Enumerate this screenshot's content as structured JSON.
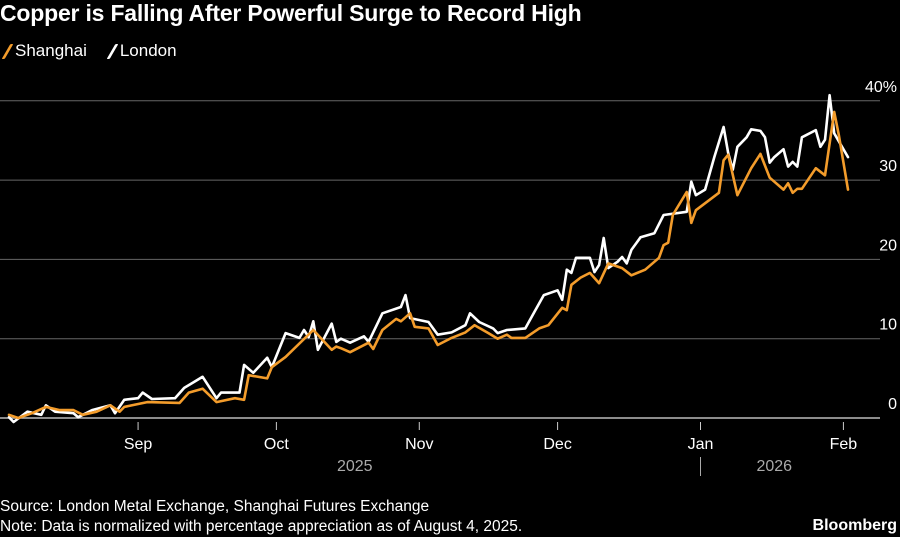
{
  "chart_data": {
    "type": "line",
    "title": "Copper is Falling After Powerful Surge to Record High",
    "xlabel": "",
    "ylabel": "",
    "x_unit": "days since August 4, 2025",
    "ylim": [
      -2,
      42
    ],
    "xlim": [
      -2,
      187
    ],
    "grid": true,
    "legend_position": "top-left",
    "y_ticks": [
      {
        "value": 0,
        "label": "0"
      },
      {
        "value": 10,
        "label": "10"
      },
      {
        "value": 20,
        "label": "20"
      },
      {
        "value": 30,
        "label": "30"
      },
      {
        "value": 40,
        "label": "40%"
      }
    ],
    "x_ticks": [
      {
        "value": 28,
        "label": "Sep"
      },
      {
        "value": 58,
        "label": "Oct"
      },
      {
        "value": 89,
        "label": "Nov"
      },
      {
        "value": 119,
        "label": "Dec"
      },
      {
        "value": 150,
        "label": "Jan"
      },
      {
        "value": 181,
        "label": "Feb"
      }
    ],
    "year_labels": [
      {
        "value": 75,
        "label": "2025"
      },
      {
        "value": 166,
        "label": "2026"
      }
    ],
    "year_divider": 150,
    "series": [
      {
        "name": "Shanghai",
        "color": "#f39c2b",
        "x": [
          0,
          2,
          5,
          8,
          11,
          14,
          16,
          19,
          22,
          24,
          25,
          30,
          37,
          39,
          42,
          45,
          49,
          51,
          52,
          56,
          57,
          60,
          66,
          70,
          71,
          72,
          74,
          78,
          79,
          81,
          84,
          85,
          87,
          88,
          91,
          93,
          96,
          99,
          101,
          104,
          106,
          108,
          109,
          112,
          115,
          117,
          120,
          121,
          122,
          124,
          126,
          128,
          130,
          133,
          135,
          138,
          141,
          142,
          143,
          144,
          147,
          148,
          149,
          154,
          155,
          156,
          158,
          161,
          163,
          165,
          168,
          169,
          170,
          171,
          172,
          175,
          177,
          179,
          180,
          182
        ],
        "values": [
          0.4,
          0,
          0.6,
          1.4,
          1.0,
          1.0,
          0.4,
          0.8,
          1.6,
          0.8,
          1.4,
          2.0,
          1.9,
          3.2,
          3.7,
          2.0,
          2.5,
          2.3,
          5.4,
          5.0,
          6.4,
          7.7,
          11.1,
          8.6,
          9.0,
          8.8,
          8.3,
          9.5,
          8.7,
          11.1,
          12.5,
          12.2,
          13.2,
          11.5,
          11.3,
          9.2,
          10.1,
          10.8,
          11.7,
          10.7,
          10.0,
          10.5,
          10.1,
          10.1,
          11.3,
          11.7,
          13.9,
          13.6,
          16.8,
          17.7,
          18.3,
          17.0,
          19.5,
          18.9,
          18.0,
          18.7,
          20.2,
          21.8,
          22.1,
          25.6,
          28.5,
          24.6,
          26.2,
          28.4,
          32.5,
          33.2,
          28.1,
          31.5,
          33.3,
          30.3,
          28.8,
          29.6,
          28.4,
          28.9,
          28.9,
          31.5,
          30.6,
          38.6,
          35.7,
          28.8
        ]
      },
      {
        "name": "London",
        "color": "#ffffff",
        "x": [
          0,
          1,
          4,
          7,
          8,
          10,
          14,
          15,
          18,
          22,
          23,
          25,
          28,
          29,
          31,
          36,
          38,
          42,
          45,
          46,
          50,
          51,
          53,
          56,
          57,
          60,
          63,
          64,
          65,
          66,
          67,
          70,
          71,
          72,
          74,
          77,
          78,
          81,
          85,
          86,
          87,
          91,
          93,
          96,
          99,
          100,
          102,
          105,
          106,
          108,
          112,
          114,
          116,
          119,
          120,
          121,
          122,
          123,
          126,
          127,
          128,
          129,
          130,
          132,
          133,
          134,
          135,
          137,
          140,
          142,
          147,
          148,
          149,
          151,
          153,
          155,
          156,
          157,
          158,
          160,
          161,
          163,
          164,
          165,
          166,
          168,
          169,
          170,
          171,
          172,
          175,
          176,
          177,
          178,
          179,
          182
        ],
        "values": [
          0.1,
          -0.5,
          0.8,
          0.4,
          1.6,
          0.8,
          0.6,
          0.1,
          1.0,
          1.6,
          0.6,
          2.3,
          2.5,
          3.2,
          2.4,
          2.5,
          3.8,
          5.2,
          2.5,
          3.2,
          3.2,
          6.7,
          5.7,
          7.6,
          6.4,
          10.7,
          10.1,
          11.1,
          10.2,
          12.2,
          8.6,
          11.9,
          9.6,
          10.0,
          9.5,
          10.3,
          9.6,
          13.2,
          14.0,
          15.5,
          12.6,
          12.1,
          10.5,
          10.8,
          11.7,
          13.2,
          12.1,
          11.3,
          10.7,
          11.1,
          11.3,
          13.4,
          15.5,
          16.1,
          14.9,
          18.7,
          18.3,
          20.2,
          20.2,
          18.4,
          19.3,
          22.7,
          18.9,
          19.7,
          20.3,
          19.5,
          21.2,
          22.8,
          23.3,
          25.6,
          26.0,
          29.8,
          28.1,
          28.8,
          32.9,
          36.7,
          33.4,
          31.3,
          34.2,
          35.4,
          36.4,
          36.2,
          35.4,
          32.2,
          32.9,
          33.9,
          31.7,
          32.3,
          31.7,
          35.4,
          36.3,
          34.2,
          35.1,
          40.7,
          35.9,
          32.9
        ]
      }
    ]
  },
  "footer": {
    "source": "Source: London Metal Exchange, Shanghai Futures Exchange",
    "note": "Note: Data is normalized with percentage appreciation as of August 4, 2025.",
    "brand": "Bloomberg"
  }
}
